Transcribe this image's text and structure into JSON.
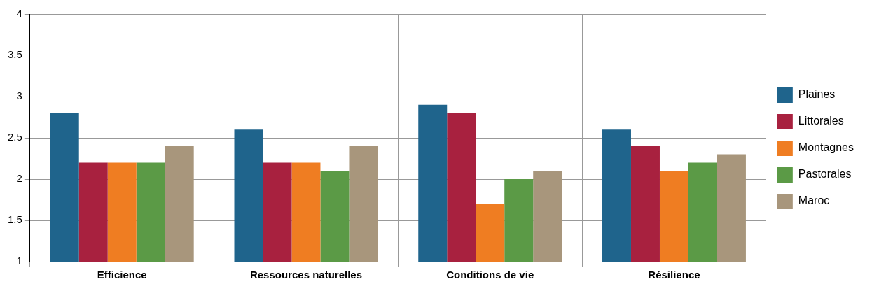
{
  "chart_data": {
    "type": "bar",
    "categories": [
      "Efficience",
      "Ressources naturelles",
      "Conditions de vie",
      "Résilience"
    ],
    "series": [
      {
        "name": "Plaines",
        "color": "#1f648c",
        "values": [
          2.8,
          2.6,
          2.9,
          2.6
        ]
      },
      {
        "name": "Littorales",
        "color": "#a8213f",
        "values": [
          2.2,
          2.2,
          2.8,
          2.4
        ]
      },
      {
        "name": "Montagnes",
        "color": "#ef7d22",
        "values": [
          2.2,
          2.2,
          1.7,
          2.1
        ]
      },
      {
        "name": "Pastorales",
        "color": "#5b9a46",
        "values": [
          2.2,
          2.1,
          2.0,
          2.2
        ]
      },
      {
        "name": "Maroc",
        "color": "#a8967c",
        "values": [
          2.4,
          2.4,
          2.1,
          2.3
        ]
      }
    ],
    "ylim": [
      1,
      4
    ],
    "yticks": [
      1,
      1.5,
      2,
      2.5,
      3,
      3.5,
      4
    ],
    "grid": true,
    "legend": "right"
  }
}
